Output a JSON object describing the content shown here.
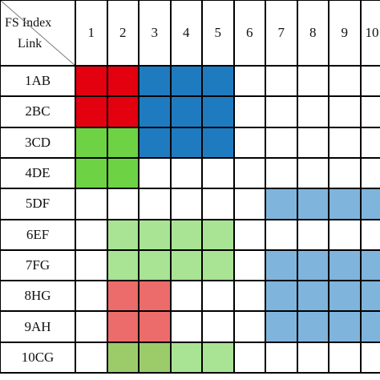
{
  "corner": {
    "top_label": "FS Index",
    "bottom_label": "Link"
  },
  "columns": [
    "1",
    "2",
    "3",
    "4",
    "5",
    "6",
    "7",
    "8",
    "9",
    "10"
  ],
  "rows": [
    "1AB",
    "2BC",
    "3CD",
    "4DE",
    "5DF",
    "6EF",
    "7FG",
    "8HG",
    "9AH",
    "10CG"
  ],
  "colors": {
    "R": "#e3000f",
    "B": "#1f7bc0",
    "G": "#6ed245",
    "LG": "#a9e394",
    "LB": "#7fb4dc",
    "P": "#ec6b6b",
    "OG": "#9ccc6a",
    "W": "#ffffff"
  },
  "cells": [
    [
      "R",
      "R",
      "B",
      "B",
      "B",
      "W",
      "W",
      "W",
      "W",
      "W"
    ],
    [
      "R",
      "R",
      "B",
      "B",
      "B",
      "W",
      "W",
      "W",
      "W",
      "W"
    ],
    [
      "G",
      "G",
      "B",
      "B",
      "B",
      "W",
      "W",
      "W",
      "W",
      "W"
    ],
    [
      "G",
      "G",
      "W",
      "W",
      "W",
      "W",
      "W",
      "W",
      "W",
      "W"
    ],
    [
      "W",
      "W",
      "W",
      "W",
      "W",
      "W",
      "LB",
      "LB",
      "LB",
      "LB"
    ],
    [
      "W",
      "LG",
      "LG",
      "LG",
      "LG",
      "W",
      "W",
      "W",
      "W",
      "W"
    ],
    [
      "W",
      "LG",
      "LG",
      "LG",
      "LG",
      "W",
      "LB",
      "LB",
      "LB",
      "LB"
    ],
    [
      "W",
      "P",
      "P",
      "W",
      "W",
      "W",
      "LB",
      "LB",
      "LB",
      "LB"
    ],
    [
      "W",
      "P",
      "P",
      "W",
      "W",
      "W",
      "LB",
      "LB",
      "LB",
      "LB"
    ],
    [
      "W",
      "OG",
      "OG",
      "LG",
      "LG",
      "W",
      "W",
      "W",
      "W",
      "W"
    ]
  ]
}
